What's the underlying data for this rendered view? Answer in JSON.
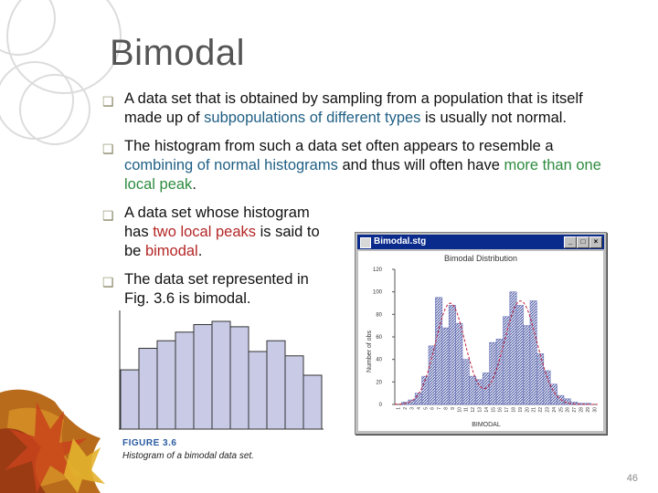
{
  "slide": {
    "title": "Bimodal",
    "page_number": "46",
    "bullets": [
      {
        "parts": [
          {
            "text": "A data set that is obtained by sampling from a population that is itself made up of ",
            "style": "plain"
          },
          {
            "text": "subpopulations of different types",
            "style": "blue"
          },
          {
            "text": " is usually not normal.",
            "style": "plain"
          }
        ]
      },
      {
        "parts": [
          {
            "text": "The histogram from such a data set often appears to resemble a ",
            "style": "plain"
          },
          {
            "text": "combining of normal histograms",
            "style": "blue"
          },
          {
            "text": " and thus will often have ",
            "style": "plain"
          },
          {
            "text": "more than one local peak",
            "style": "green"
          },
          {
            "text": ".",
            "style": "plain"
          }
        ]
      },
      {
        "parts": [
          {
            "text": "A data set whose histogram has ",
            "style": "plain"
          },
          {
            "text": "two local peaks",
            "style": "red"
          },
          {
            "text": " is said to be ",
            "style": "plain"
          },
          {
            "text": "bimodal",
            "style": "red"
          },
          {
            "text": ".",
            "style": "plain"
          }
        ]
      },
      {
        "parts": [
          {
            "text": "The data set represented in Fig. 3.6 is bimodal.",
            "style": "plain"
          }
        ]
      }
    ],
    "colors": {
      "blue": "#1f5f84",
      "red": "#b52626",
      "green": "#2e8b3f",
      "title": "#555555"
    }
  },
  "figure_3_6": {
    "label": "FIGURE 3.6",
    "caption": "Histogram of a bimodal data set.",
    "bar_heights": [
      0.55,
      0.75,
      0.82,
      0.9,
      0.97,
      1.0,
      0.95,
      0.72,
      0.82,
      0.68,
      0.5
    ],
    "bar_color": "#c9cbe6"
  },
  "window": {
    "title": "Bimodal.stg",
    "buttons": [
      "_",
      "□",
      "×"
    ]
  },
  "chart_data": {
    "type": "bar",
    "title": "Bimodal Distribution",
    "xlabel": "BIMODAL",
    "ylabel": "Number of obs",
    "ylim": [
      0,
      120
    ],
    "y_ticks": [
      "0",
      "20",
      "40",
      "60",
      "80",
      "100",
      "120"
    ],
    "categories": [
      "1",
      "2",
      "3",
      "4",
      "5",
      "6",
      "7",
      "8",
      "9",
      "10",
      "11",
      "12",
      "13",
      "14",
      "15",
      "16",
      "17",
      "18",
      "19",
      "20",
      "21",
      "22",
      "23",
      "24",
      "25",
      "26",
      "27",
      "28",
      "29",
      "30"
    ],
    "values": [
      0,
      2,
      4,
      10,
      25,
      52,
      95,
      68,
      88,
      72,
      40,
      25,
      22,
      28,
      55,
      58,
      78,
      100,
      88,
      70,
      92,
      45,
      30,
      18,
      8,
      5,
      2,
      1,
      1,
      0
    ],
    "series_styles": {
      "bar_fill": "#6a74b8",
      "curve": "#c0203a"
    },
    "fit_curve": "dashed",
    "grid": false
  }
}
